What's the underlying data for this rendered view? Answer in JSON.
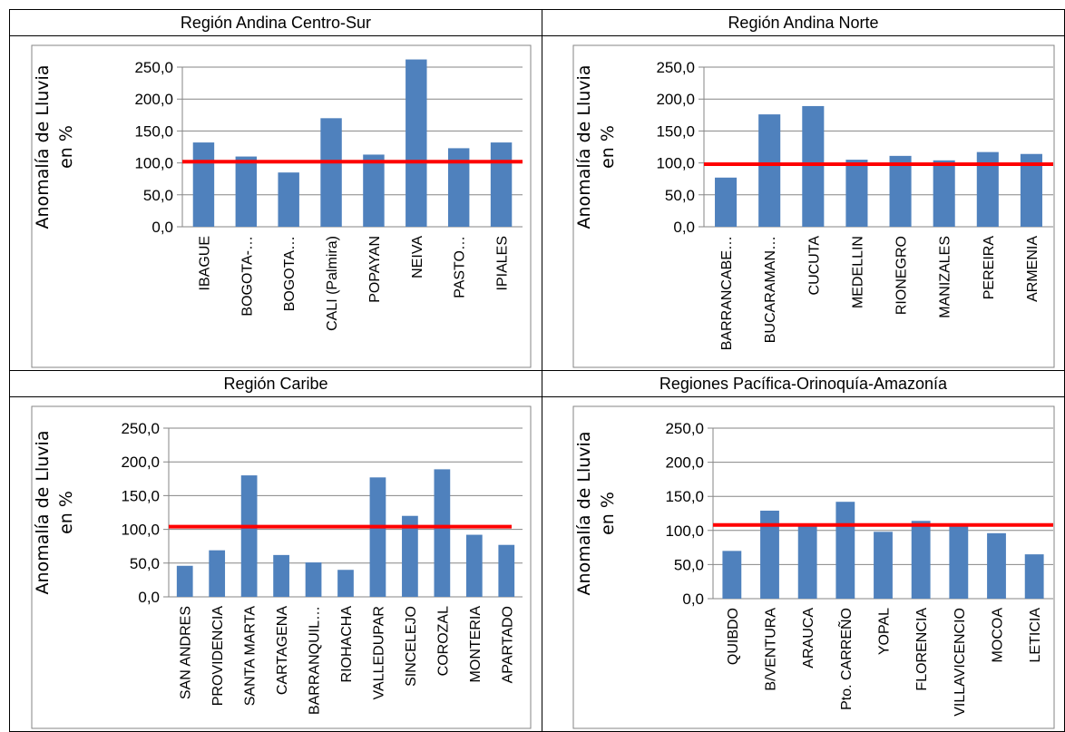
{
  "colors": {
    "bar": "#4f81bd",
    "reference_line": "#ff0000"
  },
  "chart_data": [
    {
      "type": "bar",
      "title": "Región Andina Centro-Sur",
      "ylabel": "Anomalía de Lluvia en %",
      "ylabel_lines": [
        "Anomalía de Lluvia",
        "en %"
      ],
      "ylim": [
        0,
        250
      ],
      "yticks": [
        "0,0",
        "50,0",
        "100,0",
        "150,0",
        "200,0",
        "250,0"
      ],
      "categories": [
        "IBAGUE",
        "BOGOTA-…",
        "BOGOTA…",
        "CALI (Palmira)",
        "POPAYAN",
        "NEIVA",
        "PASTO…",
        "IPIALES"
      ],
      "values": [
        132,
        110,
        85,
        170,
        113,
        262,
        123,
        132
      ],
      "reference_line": 102,
      "grid": true
    },
    {
      "type": "bar",
      "title": "Región Andina Norte",
      "ylabel": "Anomalía de Lluvia en %",
      "ylabel_lines": [
        "Anomalía de Lluvia",
        "en %"
      ],
      "ylim": [
        0,
        250
      ],
      "yticks": [
        "0,0",
        "50,0",
        "100,0",
        "150,0",
        "200,0",
        "250,0"
      ],
      "categories": [
        "BARRANCABE…",
        "BUCARAMAN…",
        "CUCUTA",
        "MEDELLIN",
        "RIONEGRO",
        "MANIZALES",
        "PEREIRA",
        "ARMENIA"
      ],
      "values": [
        77,
        176,
        189,
        105,
        111,
        104,
        117,
        114
      ],
      "reference_line": 98,
      "grid": true
    },
    {
      "type": "bar",
      "title": "Región Caribe",
      "ylabel": "Anomalía de Lluvia en %",
      "ylabel_lines": [
        "Anomalía de Lluvia",
        "en %"
      ],
      "ylim": [
        0,
        250
      ],
      "yticks": [
        "0,0",
        "50,0",
        "100,0",
        "150,0",
        "200,0",
        "250,0"
      ],
      "categories": [
        "SAN ANDRES",
        "PROVIDENCIA",
        "SANTA MARTA",
        "CARTAGENA",
        "BARRANQUIL…",
        "RIOHACHA",
        "VALLEDUPAR",
        "SINCELEJO",
        "COROZAL",
        "MONTERIA",
        "APARTADO"
      ],
      "values": [
        46,
        69,
        180,
        62,
        51,
        40,
        177,
        120,
        189,
        92,
        77
      ],
      "reference_line": 104,
      "grid": true
    },
    {
      "type": "bar",
      "title": "Regiones Pacífica-Orinoquía-Amazonía",
      "ylabel": "Anomalía de Lluvia en %",
      "ylabel_lines": [
        "Anomalía de Lluvia",
        "en %"
      ],
      "ylim": [
        0,
        250
      ],
      "yticks": [
        "0,0",
        "50,0",
        "100,0",
        "150,0",
        "200,0",
        "250,0"
      ],
      "categories": [
        "QUIBDO",
        "B/VENTURA",
        "ARAUCA",
        "Pto. CARREÑO",
        "YOPAL",
        "FLORENCIA",
        "VILLAVICENCIO",
        "MOCOA",
        "LETICIA"
      ],
      "values": [
        70,
        129,
        108,
        142,
        98,
        114,
        107,
        96,
        65
      ],
      "reference_line": 108,
      "grid": true
    }
  ]
}
